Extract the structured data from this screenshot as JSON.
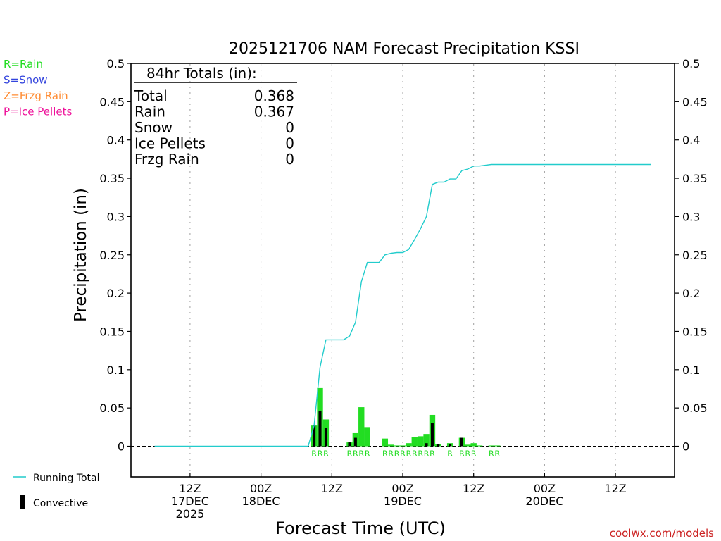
{
  "chart_data": {
    "type": "bar",
    "title": "2025121706 NAM Forecast Precipitation KSSI",
    "ylabel": "Precipitation (in)",
    "xlabel": "Forecast Time (UTC)",
    "ylim": [
      -0.04,
      0.5
    ],
    "xlim": [
      -4,
      88
    ],
    "yticks": [
      0,
      0.05,
      0.1,
      0.15,
      0.2,
      0.25,
      0.3,
      0.35,
      0.4,
      0.45,
      0.5
    ],
    "ytick_labels": [
      "0",
      "0.05",
      "0.1",
      "0.15",
      "0.2",
      "0.25",
      "0.3",
      "0.35",
      "0.4",
      "0.45",
      "0.5"
    ],
    "xticks": [
      {
        "hour": 6,
        "lines": [
          "12Z",
          "17DEC",
          "2025"
        ]
      },
      {
        "hour": 18,
        "lines": [
          "00Z",
          "18DEC"
        ]
      },
      {
        "hour": 30,
        "lines": [
          "12Z"
        ]
      },
      {
        "hour": 42,
        "lines": [
          "00Z",
          "19DEC"
        ]
      },
      {
        "hour": 54,
        "lines": [
          "12Z"
        ]
      },
      {
        "hour": 66,
        "lines": [
          "00Z",
          "20DEC"
        ]
      },
      {
        "hour": 78,
        "lines": [
          "12Z"
        ]
      }
    ],
    "legend": [
      {
        "code": "R",
        "label": "R=Rain",
        "color": "#22dd22"
      },
      {
        "code": "S",
        "label": "S=Snow",
        "color": "#3344dd"
      },
      {
        "code": "Z",
        "label": "Z=Frzg Rain",
        "color": "#ff8c33"
      },
      {
        "code": "P",
        "label": "P=Ice Pellets",
        "color": "#ee1199"
      }
    ],
    "series_legend": [
      {
        "label": "Running Total",
        "color": "#22cccc"
      },
      {
        "label": "Convective",
        "color": "#000000"
      }
    ],
    "totals": {
      "heading": "84hr Totals (in):",
      "rows": [
        {
          "label": "Total",
          "value": "0.368"
        },
        {
          "label": "Rain",
          "value": "0.367"
        },
        {
          "label": "Snow",
          "value": "0"
        },
        {
          "label": "Ice Pellets",
          "value": "0"
        },
        {
          "label": "Frzg Rain",
          "value": "0"
        }
      ]
    },
    "bars": [
      {
        "hour": 27,
        "total": 0.027,
        "conv": 0.027,
        "type": "R"
      },
      {
        "hour": 28,
        "total": 0.076,
        "conv": 0.046,
        "type": "R"
      },
      {
        "hour": 29,
        "total": 0.035,
        "conv": 0.024,
        "type": "R"
      },
      {
        "hour": 33,
        "total": 0.005,
        "conv": 0.005,
        "type": "R"
      },
      {
        "hour": 34,
        "total": 0.018,
        "conv": 0.011,
        "type": "R"
      },
      {
        "hour": 35,
        "total": 0.051,
        "conv": 0.0,
        "type": "R"
      },
      {
        "hour": 36,
        "total": 0.025,
        "conv": 0.0,
        "type": "R"
      },
      {
        "hour": 39,
        "total": 0.01,
        "conv": 0.0,
        "type": "R"
      },
      {
        "hour": 40,
        "total": 0.002,
        "conv": 0.0,
        "type": "R"
      },
      {
        "hour": 41,
        "total": 0.001,
        "conv": 0.0,
        "type": "R"
      },
      {
        "hour": 42,
        "total": 0.001,
        "conv": 0.0,
        "type": "R"
      },
      {
        "hour": 43,
        "total": 0.004,
        "conv": 0.0,
        "type": "R"
      },
      {
        "hour": 44,
        "total": 0.012,
        "conv": 0.0,
        "type": "R"
      },
      {
        "hour": 45,
        "total": 0.013,
        "conv": 0.0,
        "type": "R"
      },
      {
        "hour": 46,
        "total": 0.016,
        "conv": 0.004,
        "type": "R"
      },
      {
        "hour": 47,
        "total": 0.041,
        "conv": 0.03,
        "type": "R"
      },
      {
        "hour": 48,
        "total": 0.003,
        "conv": 0.003,
        "type": "R"
      },
      {
        "hour": 50,
        "total": 0.004,
        "conv": 0.003,
        "type": "R"
      },
      {
        "hour": 52,
        "total": 0.011,
        "conv": 0.011,
        "type": "R"
      },
      {
        "hour": 53,
        "total": 0.002,
        "conv": 0.0,
        "type": "R"
      },
      {
        "hour": 54,
        "total": 0.004,
        "conv": 0.0,
        "type": "R"
      },
      {
        "hour": 55,
        "total": 0.001,
        "conv": 0.0,
        "type": "R"
      },
      {
        "hour": 57,
        "total": 0.001,
        "conv": 0.0,
        "type": "R"
      },
      {
        "hour": 58,
        "total": 0.001,
        "conv": 0.0,
        "type": "R"
      }
    ],
    "type_labels": [
      {
        "hour": 27,
        "text": "R"
      },
      {
        "hour": 28,
        "text": "R"
      },
      {
        "hour": 29,
        "text": "R"
      },
      {
        "hour": 33,
        "text": "R"
      },
      {
        "hour": 34,
        "text": "R"
      },
      {
        "hour": 35,
        "text": "R"
      },
      {
        "hour": 36,
        "text": "R"
      },
      {
        "hour": 39,
        "text": "R"
      },
      {
        "hour": 40,
        "text": "R"
      },
      {
        "hour": 41,
        "text": "R"
      },
      {
        "hour": 42,
        "text": "R"
      },
      {
        "hour": 43,
        "text": "R"
      },
      {
        "hour": 44,
        "text": "R"
      },
      {
        "hour": 45,
        "text": "R"
      },
      {
        "hour": 46,
        "text": "R"
      },
      {
        "hour": 47,
        "text": "R"
      },
      {
        "hour": 50,
        "text": "R"
      },
      {
        "hour": 52,
        "text": "R"
      },
      {
        "hour": 53,
        "text": "R"
      },
      {
        "hour": 54,
        "text": "R"
      },
      {
        "hour": 57,
        "text": "R"
      },
      {
        "hour": 58,
        "text": "R"
      }
    ],
    "running_total": [
      [
        0,
        0
      ],
      [
        26,
        0
      ],
      [
        27,
        0.027
      ],
      [
        28,
        0.103
      ],
      [
        29,
        0.139
      ],
      [
        30,
        0.139
      ],
      [
        31,
        0.139
      ],
      [
        32,
        0.139
      ],
      [
        33,
        0.144
      ],
      [
        34,
        0.162
      ],
      [
        35,
        0.215
      ],
      [
        36,
        0.24
      ],
      [
        37,
        0.24
      ],
      [
        38,
        0.24
      ],
      [
        39,
        0.25
      ],
      [
        40,
        0.252
      ],
      [
        41,
        0.253
      ],
      [
        42,
        0.253
      ],
      [
        43,
        0.257
      ],
      [
        44,
        0.27
      ],
      [
        45,
        0.284
      ],
      [
        46,
        0.3
      ],
      [
        47,
        0.342
      ],
      [
        48,
        0.345
      ],
      [
        49,
        0.345
      ],
      [
        50,
        0.349
      ],
      [
        51,
        0.349
      ],
      [
        52,
        0.36
      ],
      [
        53,
        0.362
      ],
      [
        54,
        0.366
      ],
      [
        55,
        0.366
      ],
      [
        56,
        0.367
      ],
      [
        57,
        0.368
      ],
      [
        58,
        0.368
      ],
      [
        84,
        0.368
      ]
    ]
  },
  "credit": "coolwx.com/models"
}
